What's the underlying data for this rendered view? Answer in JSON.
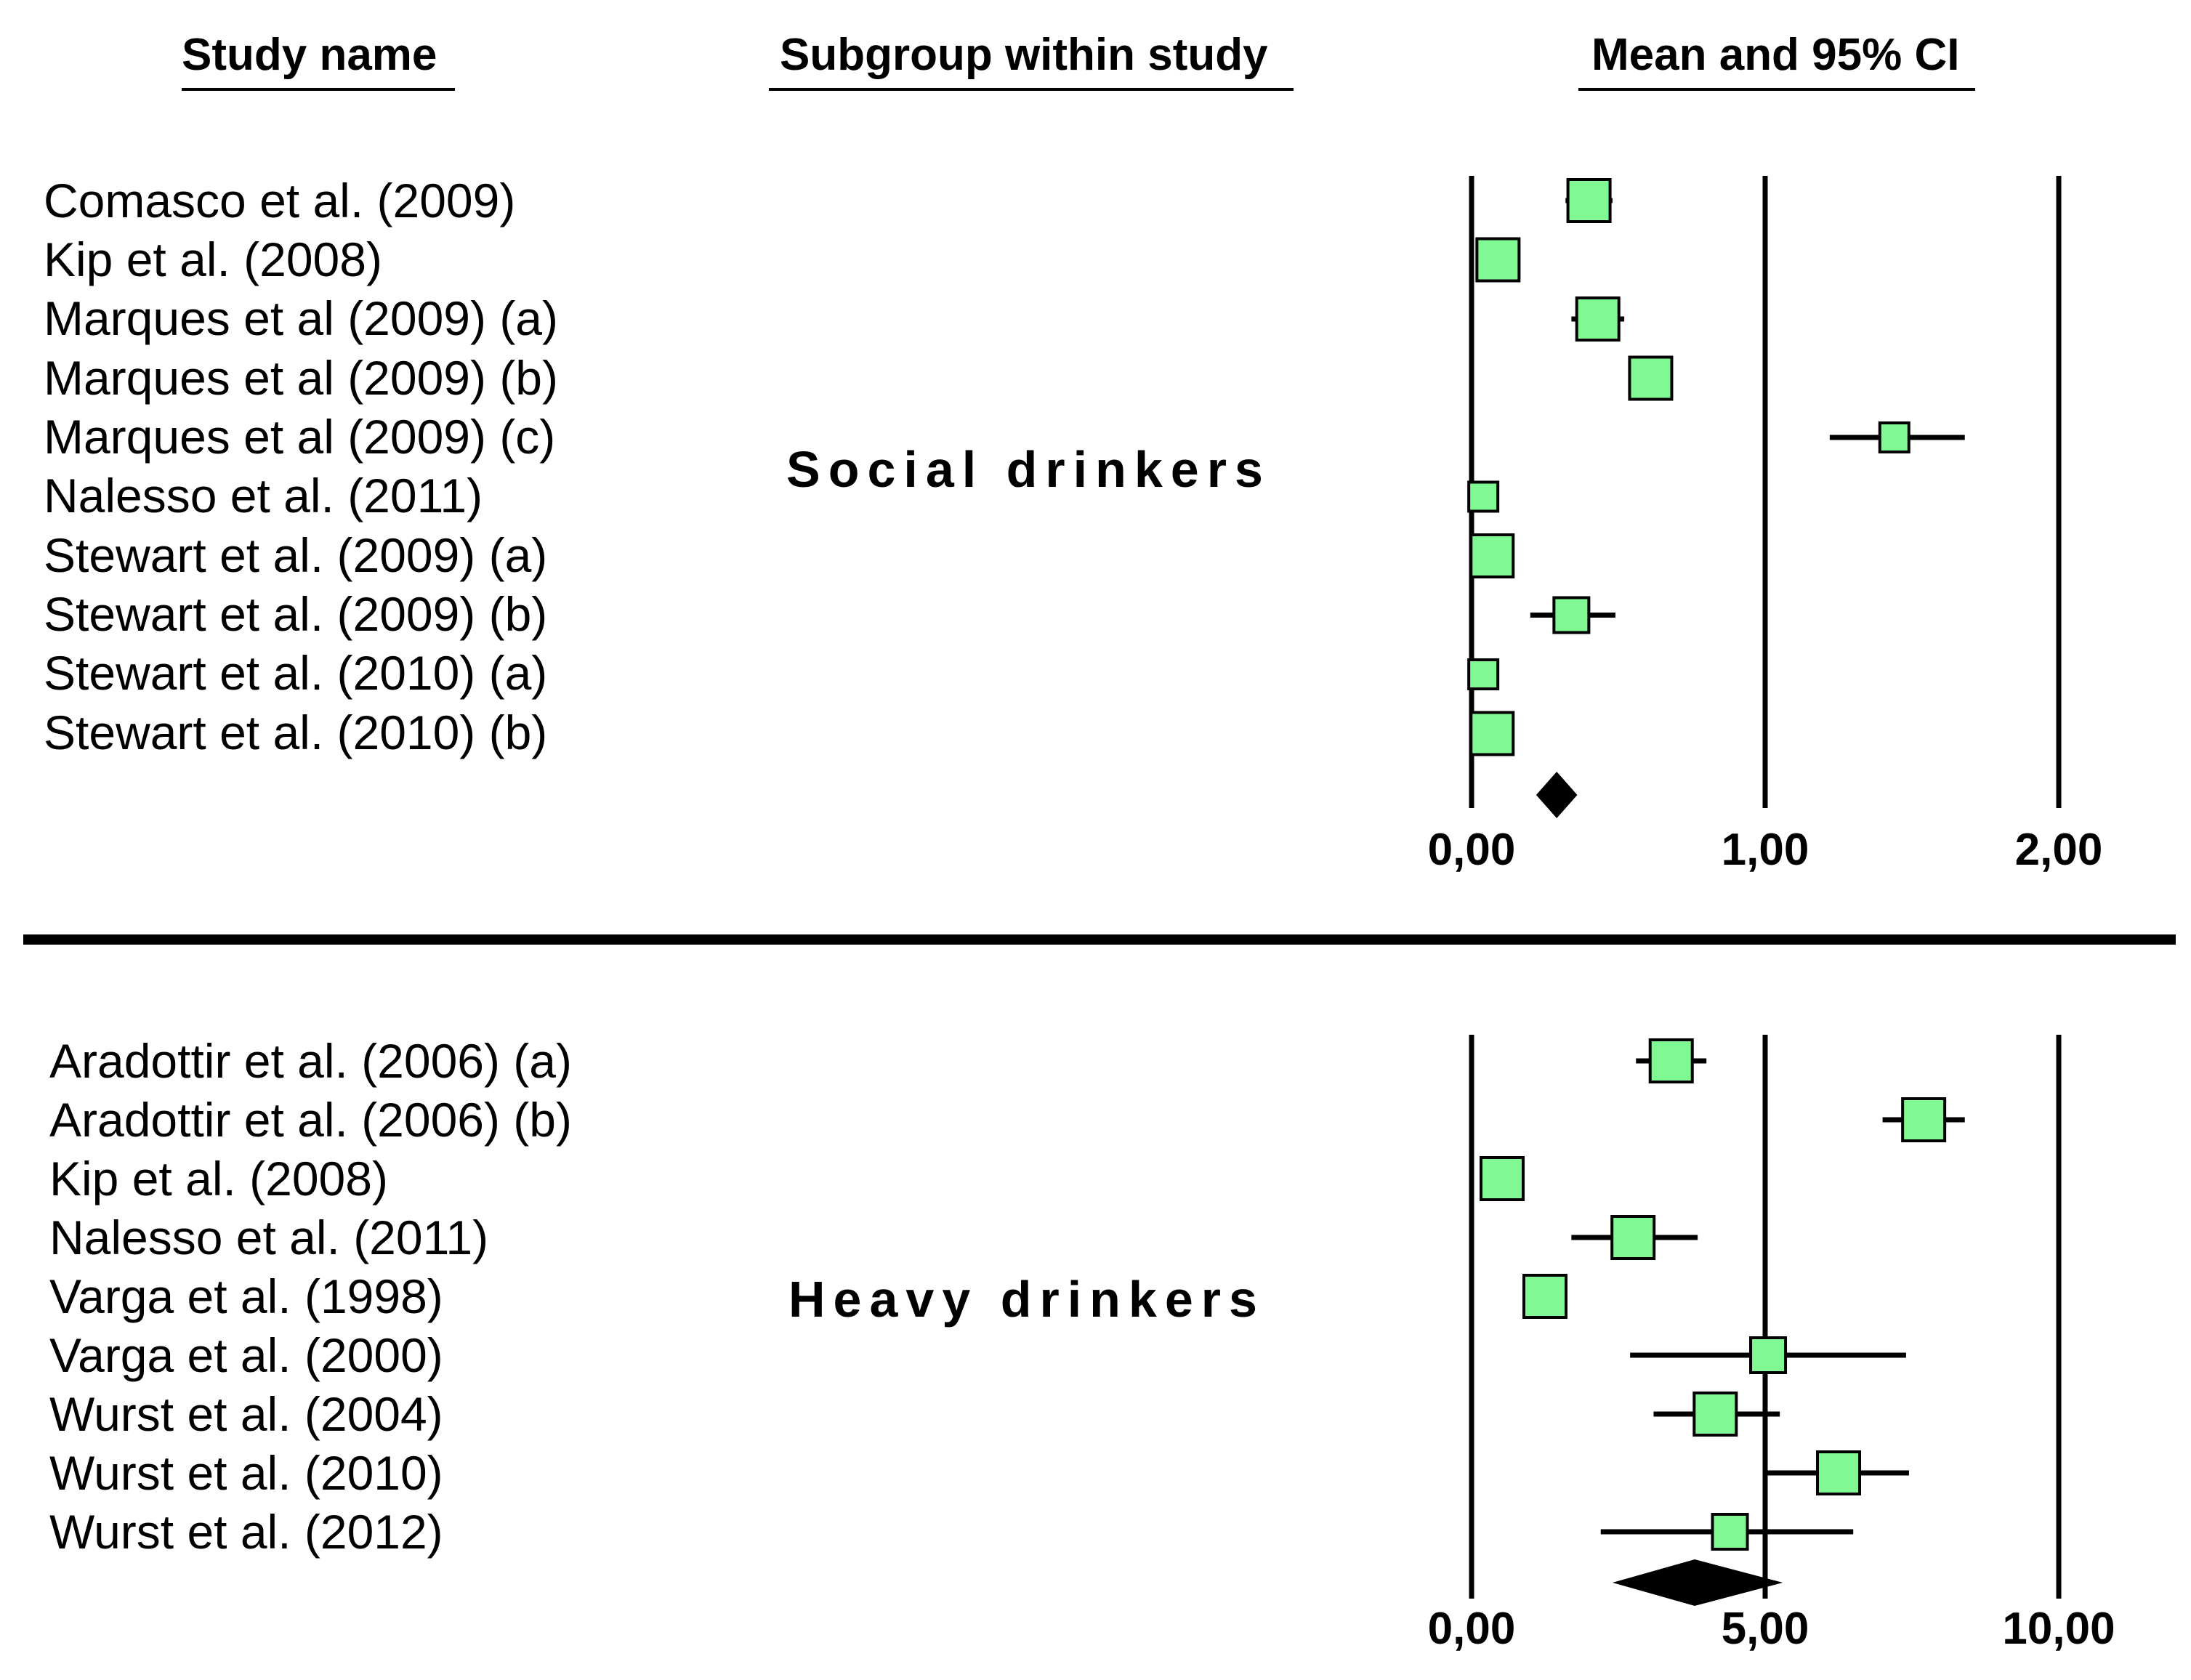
{
  "headers": {
    "study_name": "Study name",
    "subgroup": "Subgroup within study",
    "mean_ci": "Mean and 95% CI"
  },
  "colors": {
    "marker_fill": "#80f994",
    "ink": "#000000"
  },
  "chart_data": [
    {
      "type": "forest",
      "subgroup": "Social drinkers",
      "xlim": [
        0,
        2
      ],
      "ticks": [
        0,
        1,
        2
      ],
      "tick_labels": [
        "0,00",
        "1,00",
        "2,00"
      ],
      "studies": [
        {
          "name": "Comasco et al. (2009)",
          "mean": 0.4,
          "lower": 0.32,
          "upper": 0.48,
          "weight": "large"
        },
        {
          "name": "Kip et al. (2008)",
          "mean": 0.09,
          "lower": 0.02,
          "upper": 0.16,
          "weight": "large"
        },
        {
          "name": "Marques et al (2009) (a)",
          "mean": 0.43,
          "lower": 0.34,
          "upper": 0.52,
          "weight": "large"
        },
        {
          "name": "Marques et al (2009) (b)",
          "mean": 0.61,
          "lower": 0.55,
          "upper": 0.67,
          "weight": "large"
        },
        {
          "name": "Marques et al (2009) (c)",
          "mean": 1.44,
          "lower": 1.22,
          "upper": 1.68,
          "weight": "small"
        },
        {
          "name": "Nalesso et al. (2011)",
          "mean": 0.04,
          "lower": 0.0,
          "upper": 0.08,
          "weight": "small"
        },
        {
          "name": "Stewart et al. (2009) (a)",
          "mean": 0.07,
          "lower": 0.0,
          "upper": 0.13,
          "weight": "large"
        },
        {
          "name": "Stewart et al. (2009) (b)",
          "mean": 0.34,
          "lower": 0.2,
          "upper": 0.49,
          "weight": "medium"
        },
        {
          "name": "Stewart et al. (2010) (a)",
          "mean": 0.04,
          "lower": 0.0,
          "upper": 0.08,
          "weight": "small"
        },
        {
          "name": "Stewart et al. (2010) (b)",
          "mean": 0.07,
          "lower": 0.0,
          "upper": 0.13,
          "weight": "large"
        }
      ],
      "summary": {
        "mean": 0.29,
        "lower": 0.22,
        "upper": 0.36
      }
    },
    {
      "type": "forest",
      "subgroup": "Heavy drinkers",
      "xlim": [
        0,
        10
      ],
      "ticks": [
        0,
        5,
        10
      ],
      "tick_labels": [
        "0,00",
        "5,00",
        "10,00"
      ],
      "studies": [
        {
          "name": "Aradottir et al. (2006) (a)",
          "mean": 3.4,
          "lower": 2.8,
          "upper": 4.0,
          "weight": "large"
        },
        {
          "name": "Aradottir et al. (2006) (b)",
          "mean": 7.7,
          "lower": 7.0,
          "upper": 8.4,
          "weight": "large"
        },
        {
          "name": "Kip et al. (2008)",
          "mean": 0.52,
          "lower": 0.3,
          "upper": 0.8,
          "weight": "large"
        },
        {
          "name": "Nalesso et al. (2011)",
          "mean": 2.75,
          "lower": 1.7,
          "upper": 3.85,
          "weight": "large"
        },
        {
          "name": "Varga et al. (1998)",
          "mean": 1.25,
          "lower": 1.0,
          "upper": 1.5,
          "weight": "large"
        },
        {
          "name": "Varga et al. (2000)",
          "mean": 5.05,
          "lower": 2.7,
          "upper": 7.4,
          "weight": "medium"
        },
        {
          "name": "Wurst et al. (2004)",
          "mean": 4.15,
          "lower": 3.1,
          "upper": 5.25,
          "weight": "large"
        },
        {
          "name": "Wurst et al. (2010)",
          "mean": 6.25,
          "lower": 5.0,
          "upper": 7.45,
          "weight": "large"
        },
        {
          "name": "Wurst et al. (2012)",
          "mean": 4.4,
          "lower": 2.2,
          "upper": 6.5,
          "weight": "medium"
        }
      ],
      "summary": {
        "mean": 3.8,
        "lower": 2.4,
        "upper": 5.3
      }
    }
  ]
}
